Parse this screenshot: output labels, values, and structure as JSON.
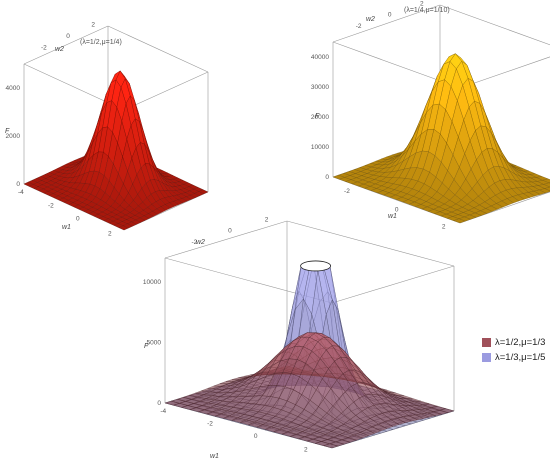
{
  "chart_data": [
    {
      "type": "surface3d",
      "title": "(λ=1/2,μ=1/4)",
      "xlabel": "w1",
      "ylabel": "w2",
      "zlabel": "F",
      "x_ticks": [
        "-4",
        "-2",
        "0",
        "2"
      ],
      "y_ticks": [
        "-2",
        "0",
        "2"
      ],
      "z_ticks": [
        "0",
        "2000",
        "4000"
      ],
      "zlim": [
        0,
        5000
      ],
      "surface_color": "#e02010",
      "peak": 4800
    },
    {
      "type": "surface3d",
      "title": "(λ=1/4,μ=1/10)",
      "xlabel": "w1",
      "ylabel": "w2",
      "zlabel": "F",
      "x_ticks": [
        "-2",
        "0",
        "2"
      ],
      "y_ticks": [
        "-2",
        "0",
        "2"
      ],
      "z_ticks": [
        "0",
        "10000",
        "20000",
        "30000",
        "40000"
      ],
      "zlim": [
        0,
        45000
      ],
      "surface_color": "#f0b010",
      "peak": 42000
    },
    {
      "type": "surface3d",
      "title": "",
      "xlabel": "w1",
      "ylabel": "w2",
      "zlabel": "F",
      "x_ticks": [
        "-4",
        "-2",
        "0",
        "2"
      ],
      "y_ticks": [
        "-2",
        "0",
        "2"
      ],
      "z_ticks": [
        "0",
        "5000",
        "10000"
      ],
      "zlim": [
        0,
        12000
      ],
      "series": [
        {
          "name": "λ=1/2,μ=1/3",
          "color": "#a0505a",
          "peak": 6000
        },
        {
          "name": "λ=1/3,μ=1/5",
          "color": "#9b9be0",
          "peak": 12000
        }
      ]
    }
  ]
}
